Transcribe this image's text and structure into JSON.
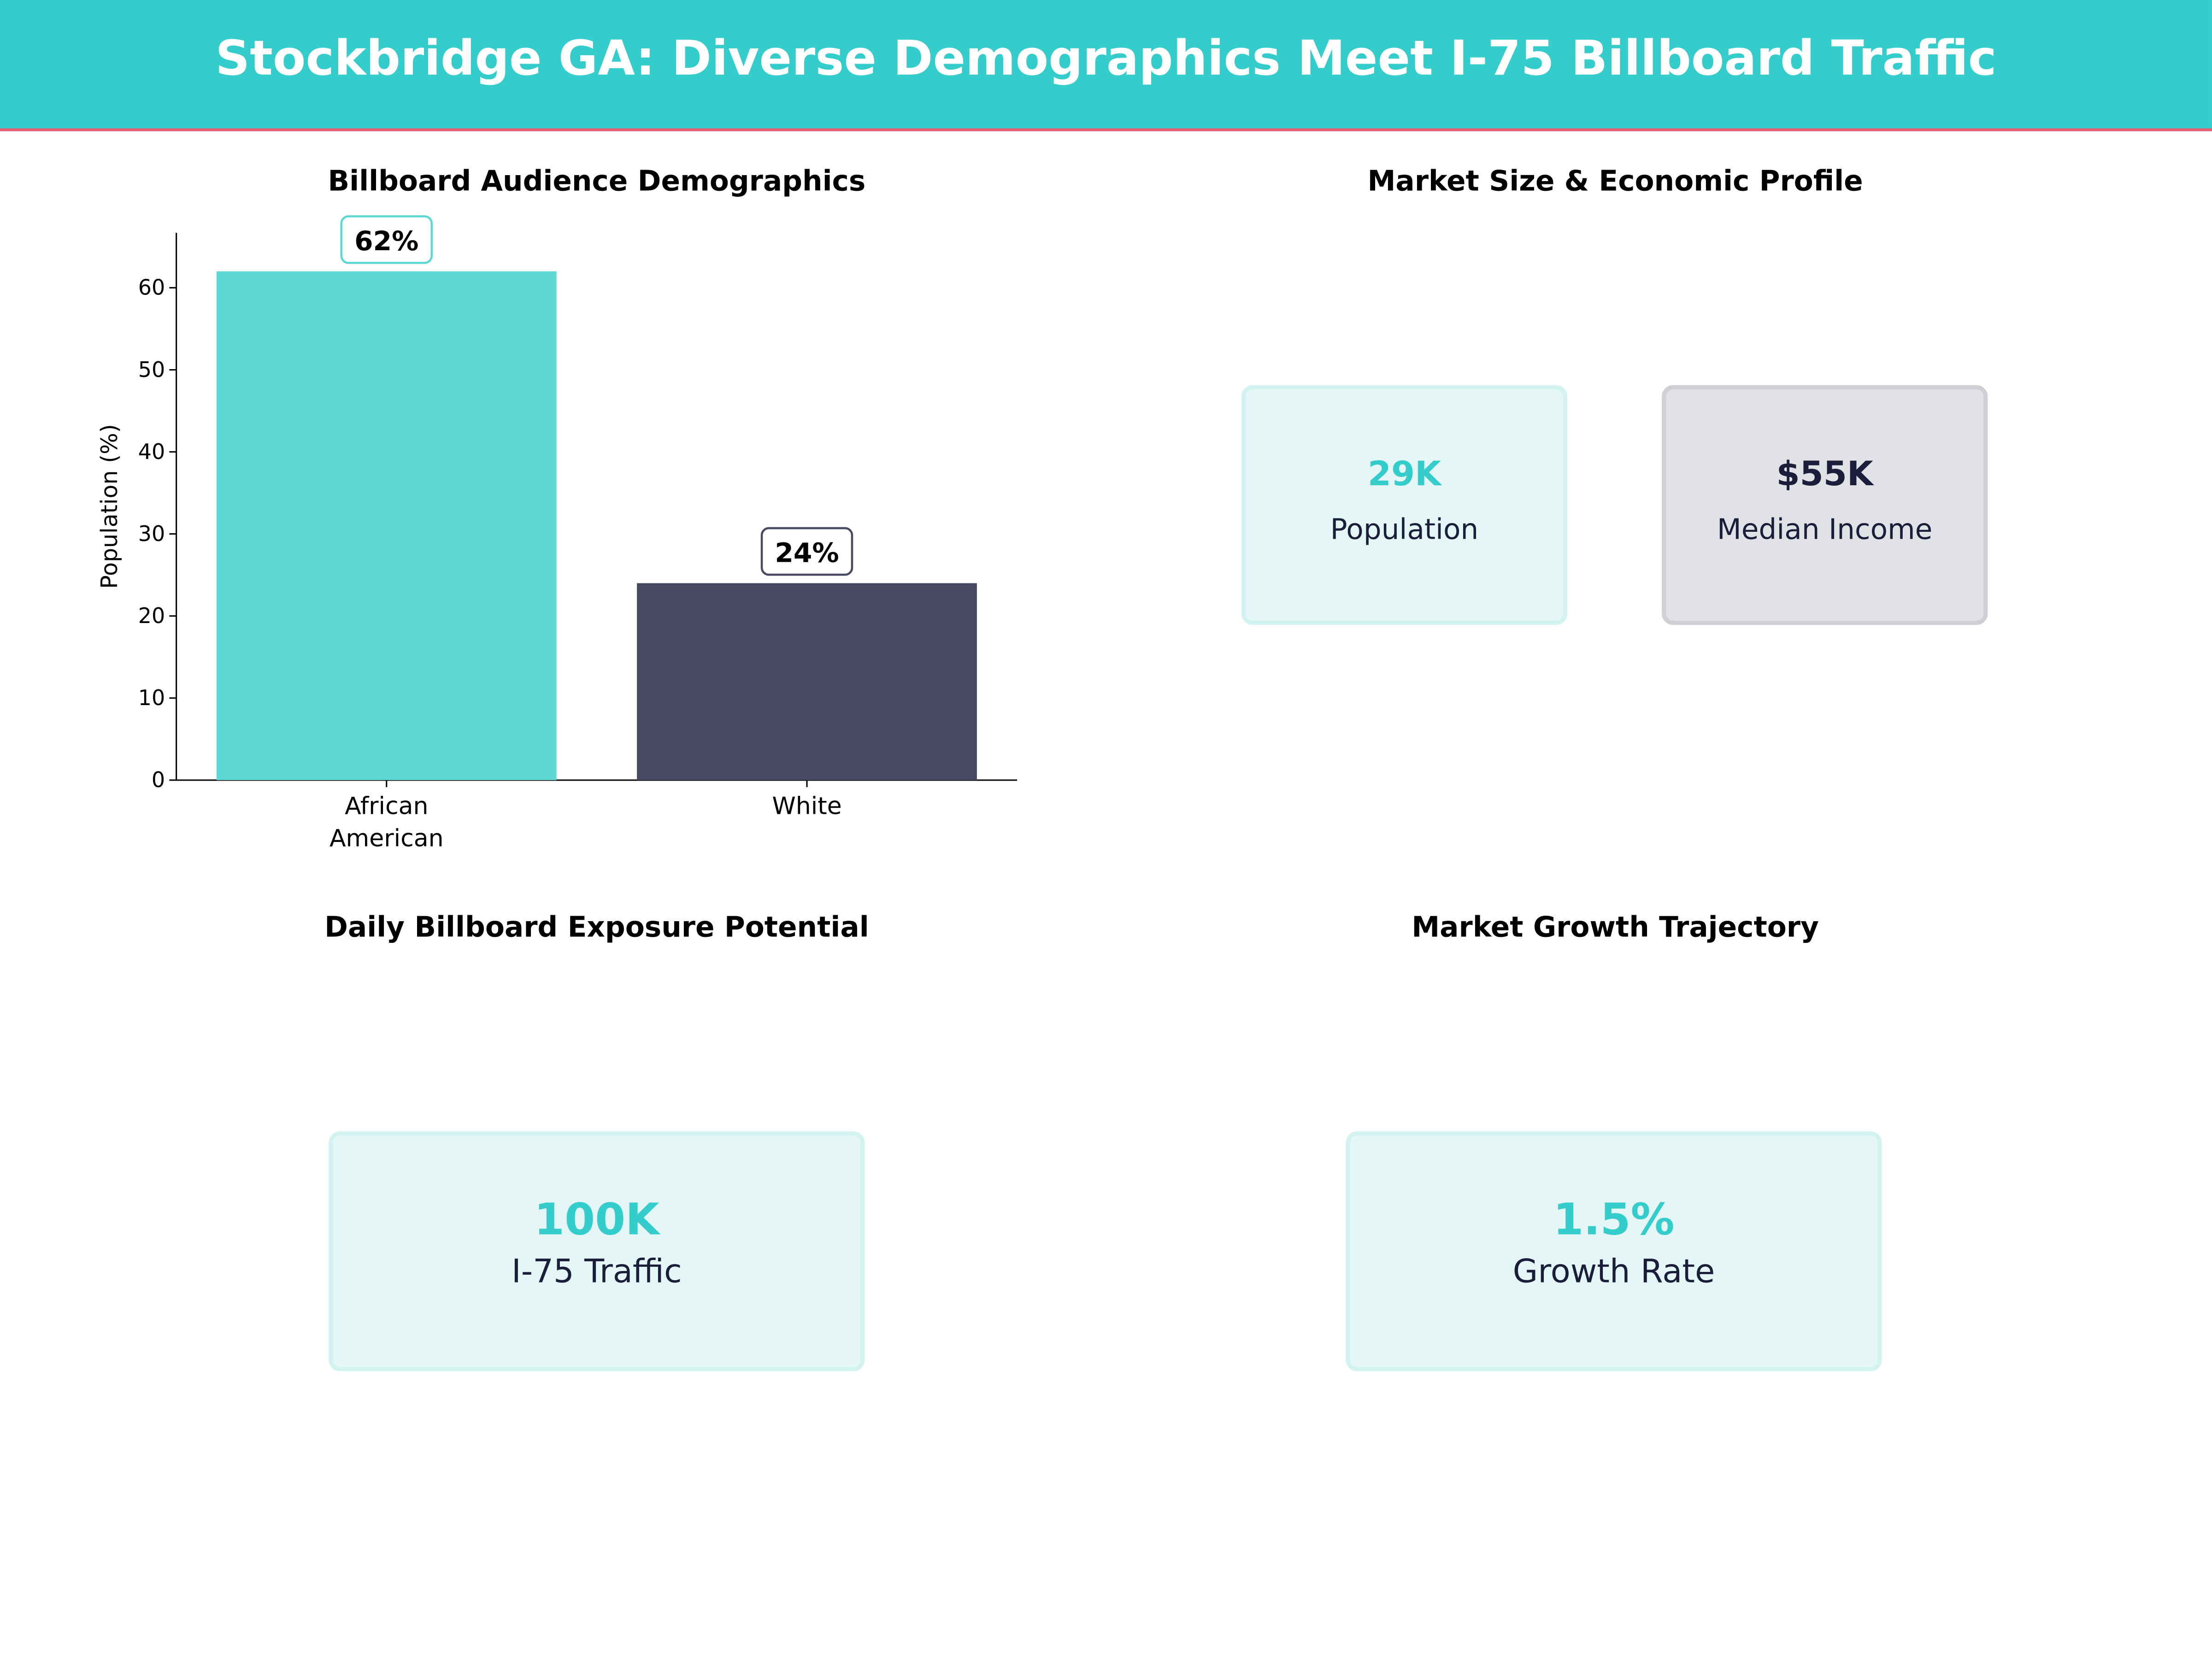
{
  "title": "Stockbridge GA: Diverse Demographics Meet I-75 Billboard Traffic",
  "colors": {
    "header": "#35CCCC",
    "accent_line": "#E8606E",
    "teal": "#5DD8D4",
    "navy": "#474A61",
    "value_teal": "#35CCCC",
    "value_navy": "#1A1E3A"
  },
  "chart_data": {
    "type": "bar",
    "title": "Billboard Audience Demographics",
    "categories": [
      "African\nAmerican",
      "White"
    ],
    "values": [
      62,
      24
    ],
    "data_labels": [
      "62%",
      "24%"
    ],
    "xlabel": "",
    "ylabel": "Population (%)",
    "ylim": [
      0,
      66.7
    ],
    "yticks": [
      0,
      10,
      20,
      30,
      40,
      50,
      60
    ],
    "bar_colors": [
      "#5DD8D4",
      "#474A61"
    ],
    "grid": false
  },
  "market": {
    "title": "Market Size & Economic Profile",
    "cards": [
      {
        "value": "29K",
        "label": "Population"
      },
      {
        "value": "$55K",
        "label": "Median Income"
      }
    ]
  },
  "exposure": {
    "title": "Daily Billboard Exposure Potential",
    "value": "100K",
    "label": "I-75 Traffic"
  },
  "growth": {
    "title": "Market Growth Trajectory",
    "value": "1.5%",
    "label": "Growth Rate"
  }
}
